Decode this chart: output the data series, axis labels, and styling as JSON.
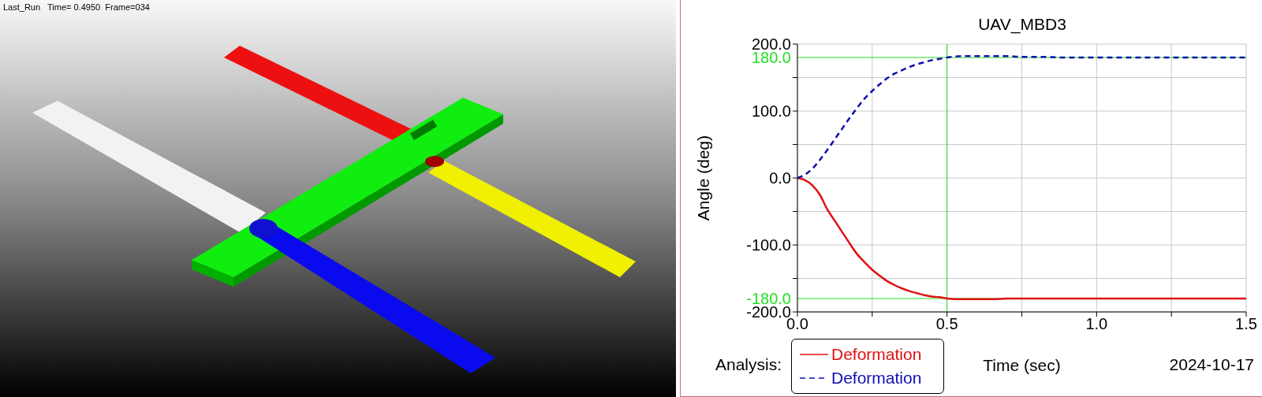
{
  "chart_data": [
    {
      "type": "other",
      "annotations": [
        "Last_Run   Time= 0.4950  Frame=034"
      ]
    },
    {
      "type": "line",
      "title": "UAV_MBD3",
      "xlabel": "Time (sec)",
      "ylabel": "Angle (deg)",
      "x": [
        0,
        0.025,
        0.05,
        0.075,
        0.1,
        0.125,
        0.15,
        0.175,
        0.2,
        0.225,
        0.25,
        0.275,
        0.3,
        0.325,
        0.35,
        0.375,
        0.4,
        0.425,
        0.45,
        0.475,
        0.5,
        0.55,
        0.6,
        0.65,
        0.7,
        0.75,
        0.8,
        0.9,
        1.0,
        1.1,
        1.2,
        1.3,
        1.4,
        1.5
      ],
      "series": [
        {
          "name": "Deformation",
          "color": "#e01010",
          "line_style": "solid",
          "values": [
            0,
            -3,
            -11,
            -25,
            -47,
            -64,
            -81,
            -98,
            -114,
            -126,
            -137,
            -146,
            -154,
            -160,
            -165,
            -169,
            -172,
            -175,
            -177,
            -178,
            -180,
            -181,
            -181,
            -181,
            -180,
            -180,
            -180,
            -180,
            -180,
            -180,
            -180,
            -180,
            -180,
            -180
          ]
        },
        {
          "name": "Deformation",
          "color": "#1010b0",
          "line_style": "dashed",
          "values": [
            0,
            5,
            14,
            27,
            42,
            58,
            74,
            90,
            105,
            119,
            130,
            140,
            149,
            156,
            161,
            166,
            170,
            173,
            176,
            178,
            180,
            182,
            182,
            182,
            182,
            181,
            181,
            180,
            180,
            180,
            180,
            180,
            180,
            180
          ]
        }
      ],
      "xlim": [
        0,
        1.5
      ],
      "ylim": [
        -200,
        200
      ],
      "xticks": [
        {
          "value": 0,
          "label": "0.0"
        },
        {
          "value": 0.25,
          "label": null
        },
        {
          "value": 0.5,
          "label": "0.5"
        },
        {
          "value": 0.75,
          "label": null
        },
        {
          "value": 1,
          "label": "1.0"
        },
        {
          "value": 1.25,
          "label": null
        },
        {
          "value": 1.5,
          "label": "1.5"
        }
      ],
      "yticks": [
        {
          "value": -200,
          "label": "-200.0"
        },
        {
          "value": -150,
          "label": null
        },
        {
          "value": -100,
          "label": "-100.0"
        },
        {
          "value": -50,
          "label": null
        },
        {
          "value": 0,
          "label": "0.0"
        },
        {
          "value": 50,
          "label": null
        },
        {
          "value": 100,
          "label": "100.0"
        },
        {
          "value": 150,
          "label": null
        },
        {
          "value": 200,
          "label": "200.0"
        }
      ],
      "ref_lines": [
        {
          "axis": "y",
          "value": 180,
          "label": "180.0",
          "color": "#22e022"
        },
        {
          "axis": "y",
          "value": -180,
          "label": "-180.0",
          "color": "#22e022"
        },
        {
          "axis": "x",
          "value": 0.5,
          "color": "#22e022"
        }
      ],
      "grid": true,
      "legend": "bottom",
      "annotations": [
        "Analysis:",
        "2024-10-17"
      ]
    }
  ]
}
